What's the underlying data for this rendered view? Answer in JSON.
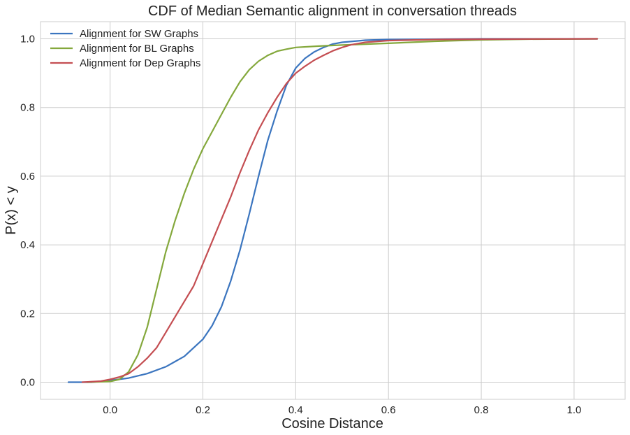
{
  "chart_data": {
    "type": "line",
    "title": "CDF of Median Semantic alignment in conversation threads",
    "xlabel": "Cosine Distance",
    "ylabel": "P(x) < y",
    "xlim": [
      -0.15,
      1.11
    ],
    "ylim": [
      -0.05,
      1.05
    ],
    "xticks": [
      0.0,
      0.2,
      0.4,
      0.6,
      0.8,
      1.0
    ],
    "xtick_labels": [
      "0.0",
      "0.2",
      "0.4",
      "0.6",
      "0.8",
      "1.0"
    ],
    "yticks": [
      0.0,
      0.2,
      0.4,
      0.6,
      0.8,
      1.0
    ],
    "ytick_labels": [
      "0.0",
      "0.2",
      "0.4",
      "0.6",
      "0.8",
      "1.0"
    ],
    "grid": true,
    "legend_position": "top-left",
    "series": [
      {
        "name": "Alignment for SW Graphs",
        "color": "#3b75bf",
        "points": [
          [
            -0.09,
            0.0
          ],
          [
            -0.04,
            0.0
          ],
          [
            0.0,
            0.005
          ],
          [
            0.04,
            0.012
          ],
          [
            0.08,
            0.025
          ],
          [
            0.12,
            0.045
          ],
          [
            0.16,
            0.075
          ],
          [
            0.2,
            0.125
          ],
          [
            0.22,
            0.165
          ],
          [
            0.24,
            0.22
          ],
          [
            0.26,
            0.295
          ],
          [
            0.28,
            0.385
          ],
          [
            0.3,
            0.49
          ],
          [
            0.32,
            0.6
          ],
          [
            0.34,
            0.705
          ],
          [
            0.36,
            0.79
          ],
          [
            0.38,
            0.865
          ],
          [
            0.4,
            0.915
          ],
          [
            0.42,
            0.943
          ],
          [
            0.44,
            0.962
          ],
          [
            0.46,
            0.975
          ],
          [
            0.48,
            0.985
          ],
          [
            0.5,
            0.99
          ],
          [
            0.55,
            0.996
          ],
          [
            0.6,
            0.998
          ],
          [
            0.7,
            0.999
          ],
          [
            0.8,
            1.0
          ],
          [
            1.05,
            1.0
          ]
        ]
      },
      {
        "name": "Alignment for BL Graphs",
        "color": "#84a83c",
        "points": [
          [
            -0.05,
            0.0
          ],
          [
            0.0,
            0.002
          ],
          [
            0.02,
            0.008
          ],
          [
            0.04,
            0.03
          ],
          [
            0.06,
            0.08
          ],
          [
            0.08,
            0.16
          ],
          [
            0.1,
            0.27
          ],
          [
            0.12,
            0.38
          ],
          [
            0.14,
            0.47
          ],
          [
            0.16,
            0.55
          ],
          [
            0.18,
            0.62
          ],
          [
            0.2,
            0.68
          ],
          [
            0.22,
            0.73
          ],
          [
            0.24,
            0.78
          ],
          [
            0.26,
            0.83
          ],
          [
            0.28,
            0.875
          ],
          [
            0.3,
            0.91
          ],
          [
            0.32,
            0.935
          ],
          [
            0.34,
            0.952
          ],
          [
            0.36,
            0.964
          ],
          [
            0.38,
            0.97
          ],
          [
            0.4,
            0.975
          ],
          [
            0.45,
            0.979
          ],
          [
            0.5,
            0.982
          ],
          [
            0.6,
            0.987
          ],
          [
            0.7,
            0.993
          ],
          [
            0.8,
            0.997
          ],
          [
            0.9,
            0.999
          ],
          [
            1.05,
            1.0
          ]
        ]
      },
      {
        "name": "Alignment for Dep Graphs",
        "color": "#c44e52",
        "points": [
          [
            -0.06,
            0.0
          ],
          [
            -0.02,
            0.003
          ],
          [
            0.0,
            0.008
          ],
          [
            0.02,
            0.015
          ],
          [
            0.04,
            0.025
          ],
          [
            0.06,
            0.045
          ],
          [
            0.08,
            0.07
          ],
          [
            0.1,
            0.1
          ],
          [
            0.12,
            0.145
          ],
          [
            0.14,
            0.19
          ],
          [
            0.16,
            0.235
          ],
          [
            0.18,
            0.28
          ],
          [
            0.2,
            0.345
          ],
          [
            0.22,
            0.41
          ],
          [
            0.24,
            0.475
          ],
          [
            0.26,
            0.54
          ],
          [
            0.28,
            0.61
          ],
          [
            0.3,
            0.675
          ],
          [
            0.32,
            0.735
          ],
          [
            0.34,
            0.785
          ],
          [
            0.36,
            0.83
          ],
          [
            0.38,
            0.87
          ],
          [
            0.4,
            0.9
          ],
          [
            0.42,
            0.92
          ],
          [
            0.44,
            0.938
          ],
          [
            0.46,
            0.952
          ],
          [
            0.48,
            0.965
          ],
          [
            0.5,
            0.975
          ],
          [
            0.52,
            0.983
          ],
          [
            0.55,
            0.99
          ],
          [
            0.6,
            0.995
          ],
          [
            0.7,
            0.998
          ],
          [
            0.8,
            0.999
          ],
          [
            1.05,
            1.0
          ]
        ]
      }
    ]
  }
}
